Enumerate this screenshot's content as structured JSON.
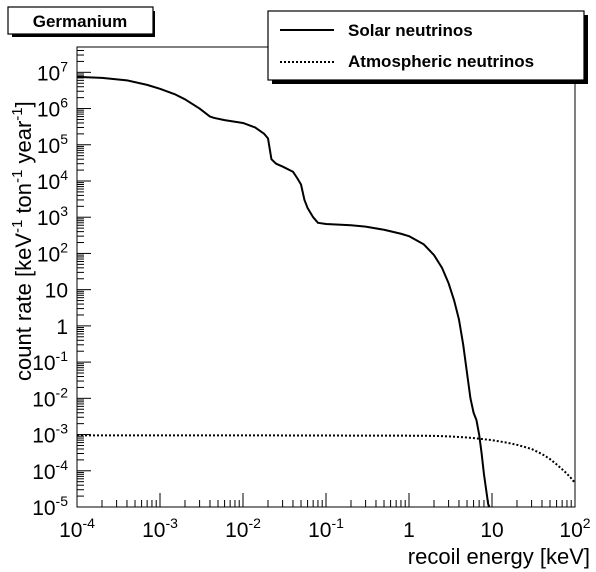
{
  "chart_data": {
    "type": "line",
    "title": "Germanium",
    "xlabel": "recoil energy [keV]",
    "ylabel": {
      "prefix": "count rate [keV",
      "sup1": "-1",
      "mid1": " ton",
      "sup2": "-1",
      "mid2": " year",
      "sup3": "-1",
      "suffix": "]"
    },
    "xscale": "log",
    "yscale": "log",
    "xlim": [
      0.0001,
      100
    ],
    "ylim": [
      1e-05,
      50000000
    ],
    "x_ticks": [
      {
        "value": 0.0001,
        "base": "10",
        "exp": "-4"
      },
      {
        "value": 0.001,
        "base": "10",
        "exp": "-3"
      },
      {
        "value": 0.01,
        "base": "10",
        "exp": "-2"
      },
      {
        "value": 0.1,
        "base": "10",
        "exp": "-1"
      },
      {
        "value": 1,
        "base": "1",
        "exp": ""
      },
      {
        "value": 10,
        "base": "10",
        "exp": ""
      },
      {
        "value": 100,
        "base": "10",
        "exp": "2"
      }
    ],
    "y_ticks": [
      {
        "value": 1e-05,
        "base": "10",
        "exp": "-5"
      },
      {
        "value": 0.0001,
        "base": "10",
        "exp": "-4"
      },
      {
        "value": 0.001,
        "base": "10",
        "exp": "-3"
      },
      {
        "value": 0.01,
        "base": "10",
        "exp": "-2"
      },
      {
        "value": 0.1,
        "base": "10",
        "exp": "-1"
      },
      {
        "value": 1,
        "base": "1",
        "exp": ""
      },
      {
        "value": 10,
        "base": "10",
        "exp": ""
      },
      {
        "value": 100,
        "base": "10",
        "exp": "2"
      },
      {
        "value": 1000,
        "base": "10",
        "exp": "3"
      },
      {
        "value": 10000,
        "base": "10",
        "exp": "4"
      },
      {
        "value": 100000,
        "base": "10",
        "exp": "5"
      },
      {
        "value": 1000000,
        "base": "10",
        "exp": "6"
      },
      {
        "value": 10000000,
        "base": "10",
        "exp": "7"
      }
    ],
    "grid": false,
    "legend_position": "top-right",
    "series": [
      {
        "name": "Solar neutrinos",
        "style": "solid",
        "color": "#000000",
        "points": [
          [
            0.0001,
            7500000.0
          ],
          [
            0.0002,
            7000000.0
          ],
          [
            0.0004,
            6000000.0
          ],
          [
            0.0007,
            4500000.0
          ],
          [
            0.001,
            3500000.0
          ],
          [
            0.0015,
            2500000.0
          ],
          [
            0.002,
            1800000.0
          ],
          [
            0.003,
            1000000.0
          ],
          [
            0.004,
            600000.0
          ],
          [
            0.0045,
            550000.0
          ],
          [
            0.006,
            480000.0
          ],
          [
            0.01,
            400000.0
          ],
          [
            0.014,
            300000.0
          ],
          [
            0.018,
            200000.0
          ],
          [
            0.02,
            150000.0
          ],
          [
            0.022,
            40000.0
          ],
          [
            0.025,
            30000.0
          ],
          [
            0.03,
            25000.0
          ],
          [
            0.04,
            18000.0
          ],
          [
            0.045,
            12000.0
          ],
          [
            0.05,
            8000.0
          ],
          [
            0.055,
            3000.0
          ],
          [
            0.06,
            1800.0
          ],
          [
            0.07,
            1000.0
          ],
          [
            0.08,
            700.0
          ],
          [
            0.1,
            650.0
          ],
          [
            0.2,
            600.0
          ],
          [
            0.3,
            550.0
          ],
          [
            0.5,
            450.0
          ],
          [
            0.8,
            350.0
          ],
          [
            1.0,
            300.0
          ],
          [
            1.5,
            180.0
          ],
          [
            2.0,
            90
          ],
          [
            2.5,
            40
          ],
          [
            3.0,
            15
          ],
          [
            3.5,
            5
          ],
          [
            4.0,
            1.5
          ],
          [
            4.5,
            0.3
          ],
          [
            5.0,
            0.05
          ],
          [
            5.5,
            0.01
          ],
          [
            6.0,
            0.004
          ],
          [
            6.5,
            0.0025
          ],
          [
            7.0,
            0.001
          ],
          [
            7.5,
            0.0003
          ],
          [
            8.0,
            8e-05
          ],
          [
            8.5,
            3e-05
          ],
          [
            9.0,
            1.2e-05
          ],
          [
            9.3,
            1e-05
          ]
        ]
      },
      {
        "name": "Atmospheric neutrinos",
        "style": "dotted",
        "color": "#000000",
        "points": [
          [
            0.0001,
            0.00095
          ],
          [
            0.001,
            0.00095
          ],
          [
            0.01,
            0.00095
          ],
          [
            0.1,
            0.00094
          ],
          [
            1,
            0.00093
          ],
          [
            2,
            0.00092
          ],
          [
            3,
            0.00089
          ],
          [
            5,
            0.00083
          ],
          [
            7,
            0.00077
          ],
          [
            10,
            0.0007
          ],
          [
            15,
            0.0006
          ],
          [
            20,
            0.00052
          ],
          [
            30,
            0.0004
          ],
          [
            40,
            0.00029
          ],
          [
            50,
            0.00021
          ],
          [
            60,
            0.00015
          ],
          [
            70,
            0.00011
          ],
          [
            80,
            8.3e-05
          ],
          [
            90,
            6.2e-05
          ],
          [
            100,
            4.6e-05
          ]
        ]
      }
    ]
  }
}
